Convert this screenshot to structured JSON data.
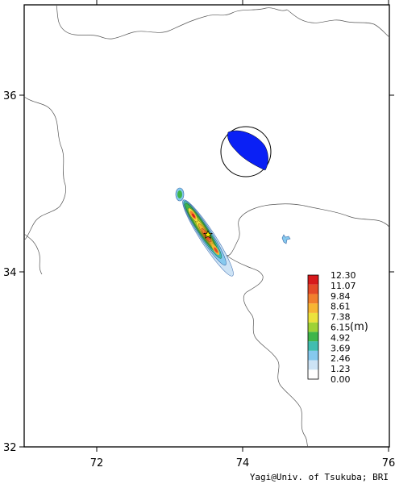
{
  "map": {
    "lon_ticks": [
      "72",
      "74",
      "76"
    ],
    "lat_ticks": [
      "32",
      "34",
      "36"
    ],
    "lon_range": [
      71,
      76
    ],
    "lat_range": [
      32,
      37
    ]
  },
  "colorbar": {
    "levels": [
      "0.00",
      "1.23",
      "2.46",
      "3.69",
      "4.92",
      "6.15",
      "7.38",
      "8.61",
      "9.84",
      "11.07",
      "12.30"
    ],
    "unit": "(m)",
    "colors": [
      "#ffffff",
      "#cde3f5",
      "#86c9ee",
      "#41bdb0",
      "#3fb54a",
      "#9ed236",
      "#ece23c",
      "#f7b533",
      "#f17f2d",
      "#e44a28",
      "#d7191c"
    ]
  },
  "focal_mechanism": {
    "color": "#0a20f5",
    "type": "beachball"
  },
  "epicenter": {
    "symbol": "star",
    "lon": 73.6,
    "lat": 34.45
  },
  "credit": "Yagi@Univ. of Tsukuba; BRI"
}
